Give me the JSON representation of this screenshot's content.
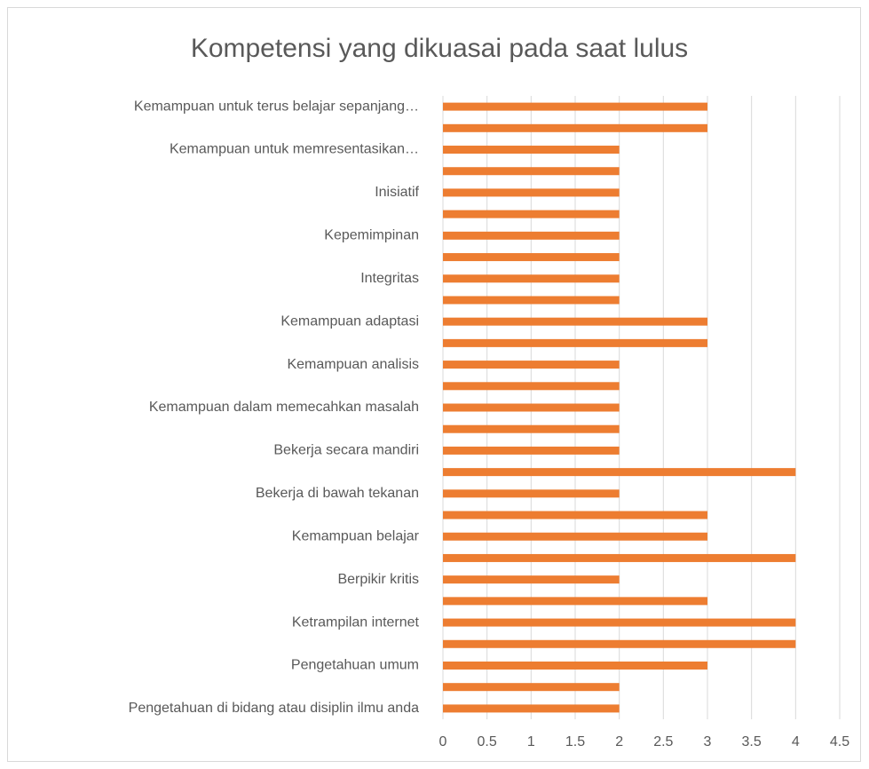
{
  "chart_data": {
    "type": "bar",
    "orientation": "horizontal",
    "title": "Kompetensi yang dikuasai pada saat lulus",
    "categories": [
      "Pengetahuan di bidang atau disiplin ilmu anda",
      null,
      "Pengetahuan umum",
      null,
      "Ketrampilan internet",
      null,
      "Berpikir kritis",
      null,
      "Kemampuan belajar",
      null,
      "Bekerja di bawah tekanan",
      null,
      "Bekerja secara mandiri",
      null,
      "Kemampuan dalam memecahkan masalah",
      null,
      "Kemampuan analisis",
      null,
      "Kemampuan adaptasi",
      null,
      "Integritas",
      null,
      "Kepemimpinan",
      null,
      "Inisiatif",
      null,
      "Kemampuan untuk memresentasikan…",
      null,
      "Kemampuan untuk terus belajar sepanjang…"
    ],
    "values": [
      2,
      2,
      3,
      4,
      4,
      3,
      2,
      4,
      3,
      3,
      2,
      4,
      2,
      2,
      2,
      2,
      2,
      3,
      3,
      2,
      2,
      2,
      2,
      2,
      2,
      2,
      2,
      3,
      3
    ],
    "color": "#ed7d31",
    "xlim": [
      0,
      4.5
    ],
    "xticks": [
      0,
      0.5,
      1,
      1.5,
      2,
      2.5,
      3,
      3.5,
      4,
      4.5
    ],
    "grid": true
  }
}
